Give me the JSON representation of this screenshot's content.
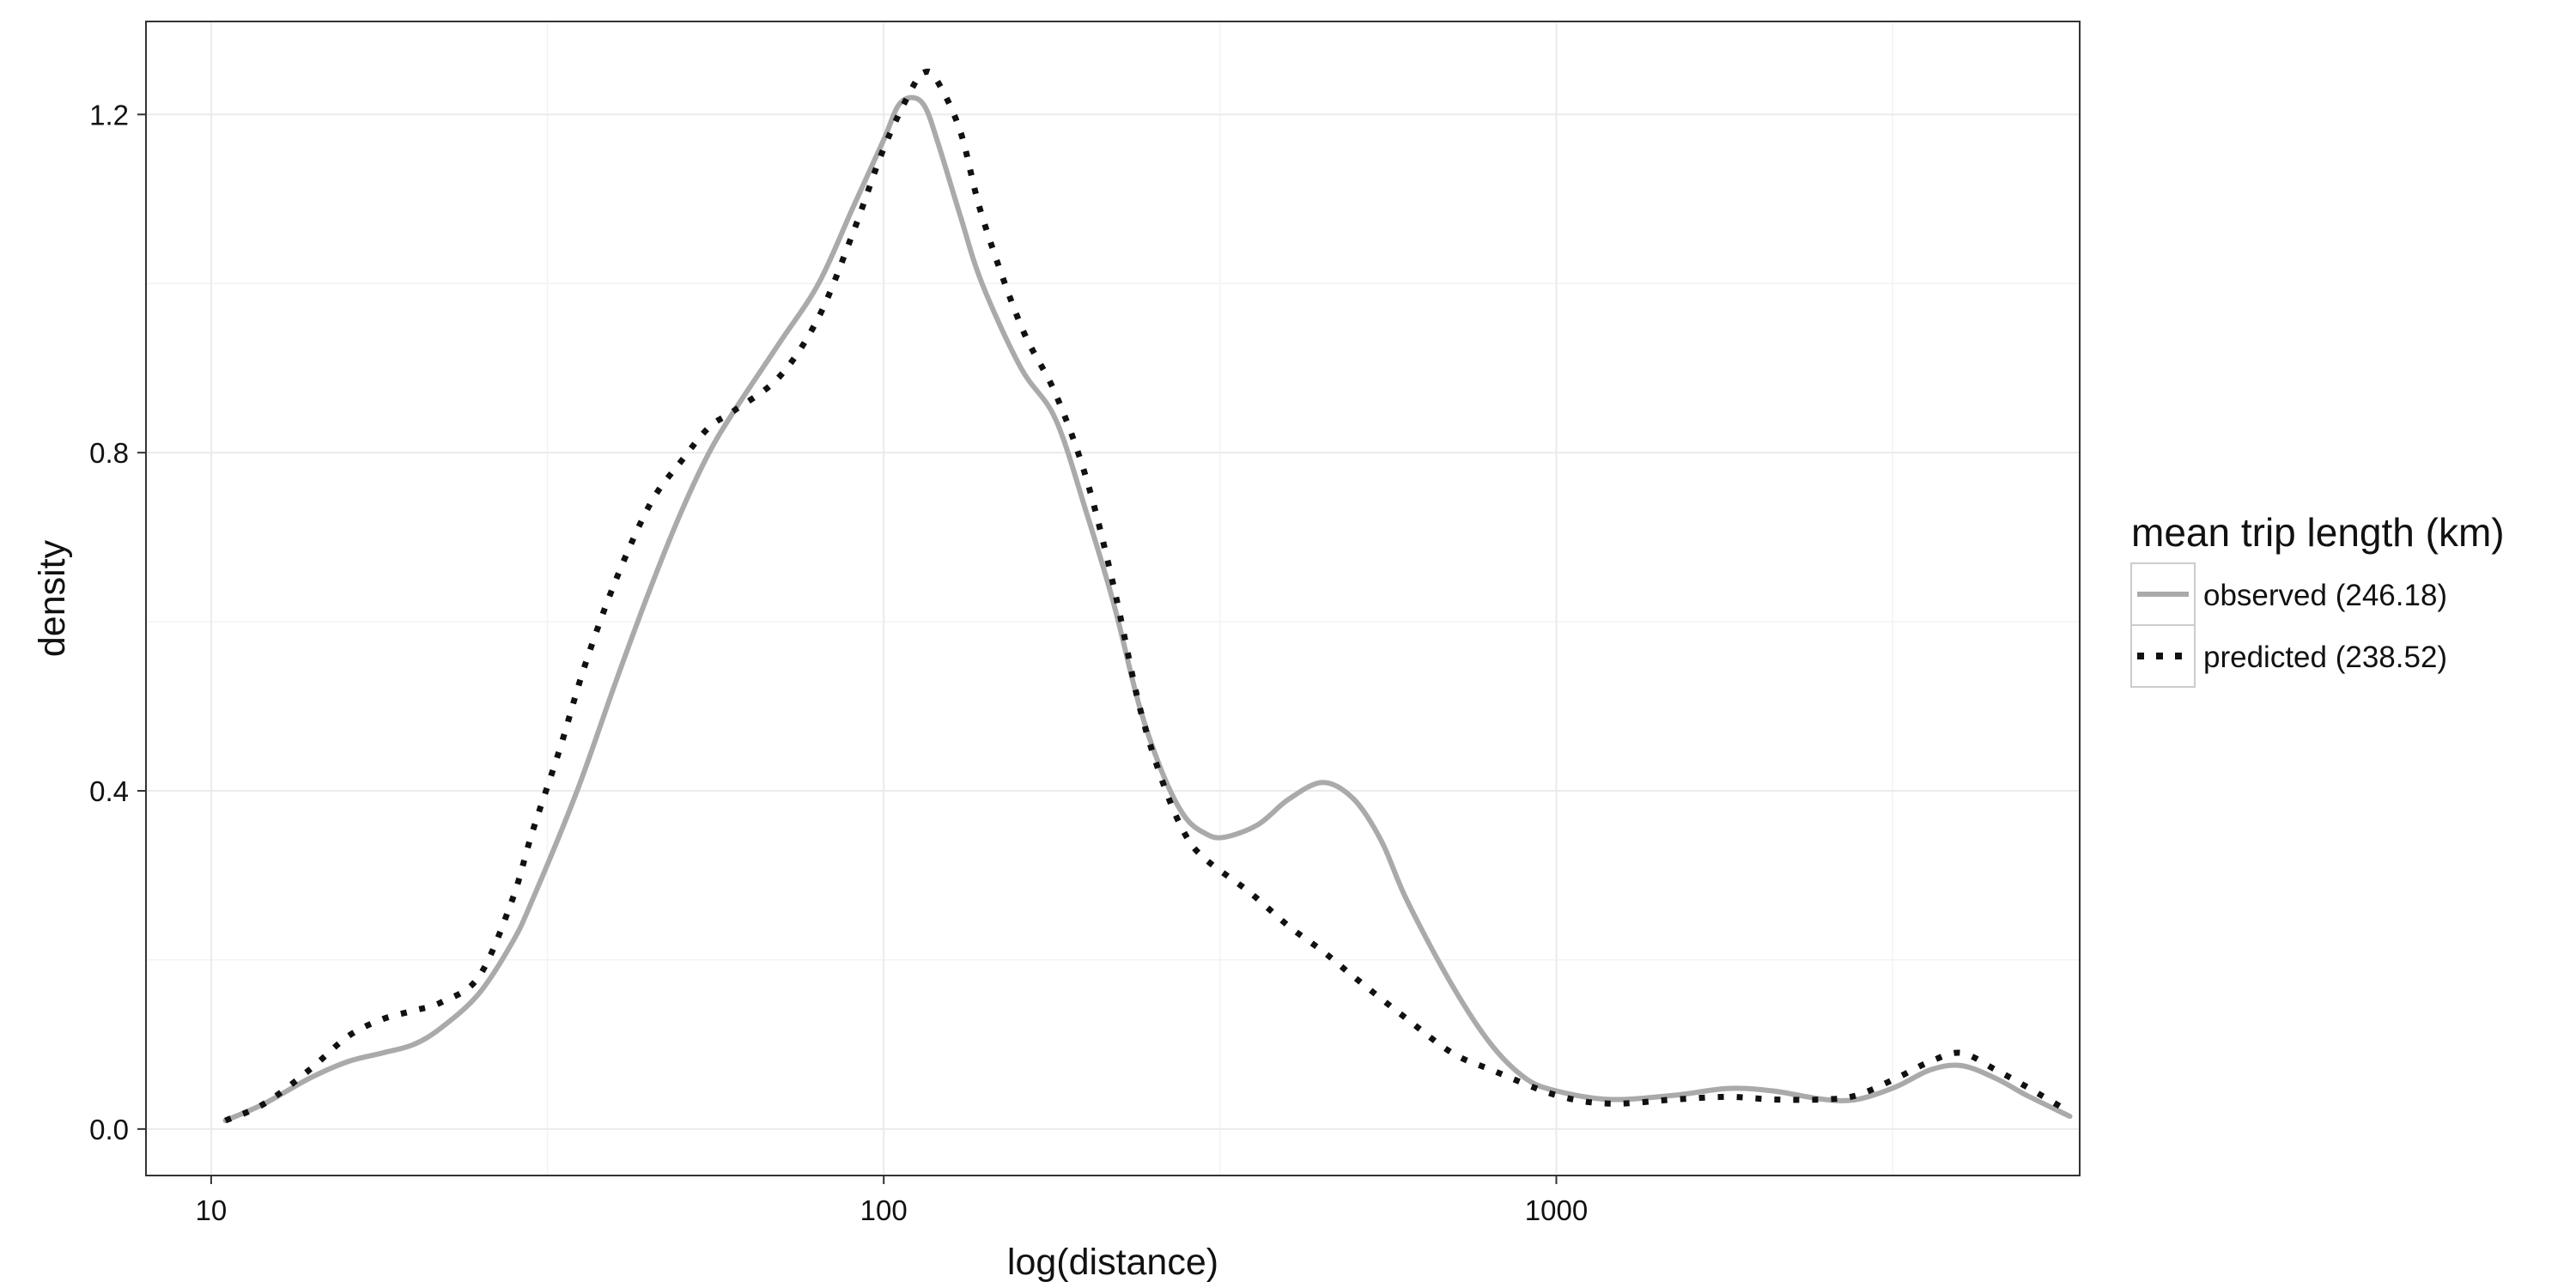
{
  "chart_data": {
    "type": "line",
    "xlabel": "log(distance)",
    "ylabel": "density",
    "x_scale": "log10",
    "xlim": [
      8,
      6000
    ],
    "ylim": [
      -0.055,
      1.31
    ],
    "x_ticks": [
      {
        "value": 10,
        "label": "10"
      },
      {
        "value": 100,
        "label": "100"
      },
      {
        "value": 1000,
        "label": "1000"
      }
    ],
    "y_ticks": [
      {
        "value": 0.0,
        "label": "0.0"
      },
      {
        "value": 0.4,
        "label": "0.4"
      },
      {
        "value": 0.8,
        "label": "0.8"
      },
      {
        "value": 1.2,
        "label": "1.2"
      }
    ],
    "grid": true,
    "legend": {
      "title": "mean trip length (km)",
      "placement": "right"
    },
    "series": [
      {
        "name": "observed (246.18)",
        "color": "#aaaaaa",
        "line_style": "solid",
        "points": [
          [
            10.5,
            0.01
          ],
          [
            12,
            0.03
          ],
          [
            14,
            0.06
          ],
          [
            16,
            0.08
          ],
          [
            18,
            0.09
          ],
          [
            20,
            0.1
          ],
          [
            22,
            0.12
          ],
          [
            25,
            0.16
          ],
          [
            28,
            0.22
          ],
          [
            30,
            0.27
          ],
          [
            35,
            0.4
          ],
          [
            40,
            0.53
          ],
          [
            45,
            0.64
          ],
          [
            50,
            0.73
          ],
          [
            55,
            0.8
          ],
          [
            60,
            0.85
          ],
          [
            70,
            0.93
          ],
          [
            80,
            1.0
          ],
          [
            90,
            1.09
          ],
          [
            100,
            1.17
          ],
          [
            105,
            1.21
          ],
          [
            110,
            1.22
          ],
          [
            115,
            1.21
          ],
          [
            120,
            1.17
          ],
          [
            130,
            1.08
          ],
          [
            140,
            1.0
          ],
          [
            160,
            0.9
          ],
          [
            180,
            0.84
          ],
          [
            200,
            0.73
          ],
          [
            220,
            0.62
          ],
          [
            240,
            0.5
          ],
          [
            260,
            0.42
          ],
          [
            280,
            0.37
          ],
          [
            300,
            0.35
          ],
          [
            320,
            0.345
          ],
          [
            360,
            0.36
          ],
          [
            400,
            0.39
          ],
          [
            450,
            0.41
          ],
          [
            500,
            0.39
          ],
          [
            550,
            0.34
          ],
          [
            600,
            0.27
          ],
          [
            700,
            0.17
          ],
          [
            800,
            0.1
          ],
          [
            900,
            0.06
          ],
          [
            1000,
            0.045
          ],
          [
            1200,
            0.035
          ],
          [
            1500,
            0.04
          ],
          [
            1800,
            0.048
          ],
          [
            2100,
            0.045
          ],
          [
            2500,
            0.035
          ],
          [
            2800,
            0.035
          ],
          [
            3200,
            0.05
          ],
          [
            3600,
            0.07
          ],
          [
            4000,
            0.075
          ],
          [
            4500,
            0.06
          ],
          [
            5000,
            0.04
          ],
          [
            5800,
            0.015
          ]
        ]
      },
      {
        "name": "predicted (238.52)",
        "color": "#111111",
        "line_style": "dotted",
        "points": [
          [
            10.5,
            0.01
          ],
          [
            12,
            0.03
          ],
          [
            14,
            0.07
          ],
          [
            16,
            0.11
          ],
          [
            18,
            0.13
          ],
          [
            20,
            0.14
          ],
          [
            22,
            0.15
          ],
          [
            25,
            0.18
          ],
          [
            28,
            0.27
          ],
          [
            30,
            0.35
          ],
          [
            33,
            0.45
          ],
          [
            36,
            0.55
          ],
          [
            40,
            0.65
          ],
          [
            45,
            0.74
          ],
          [
            50,
            0.79
          ],
          [
            55,
            0.83
          ],
          [
            60,
            0.85
          ],
          [
            70,
            0.89
          ],
          [
            80,
            0.96
          ],
          [
            90,
            1.06
          ],
          [
            100,
            1.16
          ],
          [
            110,
            1.23
          ],
          [
            115,
            1.25
          ],
          [
            120,
            1.24
          ],
          [
            130,
            1.18
          ],
          [
            140,
            1.08
          ],
          [
            160,
            0.95
          ],
          [
            180,
            0.87
          ],
          [
            200,
            0.77
          ],
          [
            220,
            0.64
          ],
          [
            240,
            0.5
          ],
          [
            260,
            0.41
          ],
          [
            280,
            0.35
          ],
          [
            300,
            0.32
          ],
          [
            350,
            0.28
          ],
          [
            400,
            0.24
          ],
          [
            450,
            0.21
          ],
          [
            500,
            0.18
          ],
          [
            600,
            0.13
          ],
          [
            700,
            0.09
          ],
          [
            800,
            0.07
          ],
          [
            1000,
            0.04
          ],
          [
            1200,
            0.03
          ],
          [
            1500,
            0.035
          ],
          [
            1800,
            0.038
          ],
          [
            2100,
            0.035
          ],
          [
            2500,
            0.035
          ],
          [
            2800,
            0.04
          ],
          [
            3200,
            0.06
          ],
          [
            3600,
            0.08
          ],
          [
            4000,
            0.09
          ],
          [
            4500,
            0.07
          ],
          [
            5000,
            0.05
          ],
          [
            5800,
            0.02
          ]
        ]
      }
    ]
  }
}
